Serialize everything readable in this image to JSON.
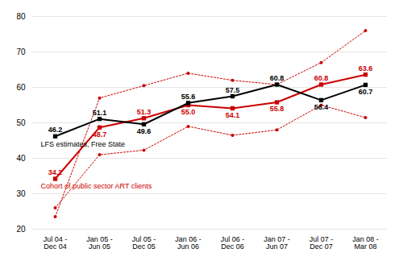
{
  "chart_data": {
    "type": "line",
    "categories": [
      "Jul 04 - Dec 04",
      "Jan 05 - Jun 05",
      "Jul 05 - Dec 05",
      "Jan 06 - Jun 06",
      "Jul 06 - Dec 06",
      "Jan 07 - Jun 07",
      "Jul 07 - Dec 07",
      "Jan 08 - Mar 08"
    ],
    "series": [
      {
        "color": "#cc0000",
        "values": [
          23.5,
          57.0,
          60.5,
          64.0,
          62.0,
          60.8,
          67.0,
          76.0
        ],
        "marker": "circle",
        "line_style": "dotted"
      },
      {
        "color": "#cc0000",
        "values": [
          26.0,
          41.0,
          42.3,
          49.0,
          46.5,
          48.0,
          55.0,
          51.5
        ],
        "marker": "circle",
        "line_style": "dotted"
      },
      {
        "name": "Cohort of public sector ART clients",
        "color": "#cc0000",
        "values": [
          34.2,
          48.7,
          51.3,
          55.0,
          54.1,
          55.8,
          60.8,
          63.6
        ],
        "value_labels": [
          "34.2",
          "48.7",
          "51.3",
          "55.0",
          "54.1",
          "55.8",
          "60.8",
          "63.6"
        ],
        "marker": "square",
        "line_style": "solid",
        "data_labels": true
      },
      {
        "name": "LFS estimates, Free State",
        "color": "#000000",
        "values": [
          46.2,
          51.1,
          49.6,
          55.6,
          57.5,
          60.8,
          56.4,
          60.7
        ],
        "marker": "square",
        "line_style": "solid",
        "data_labels": true
      }
    ],
    "ylim": [
      20,
      80
    ],
    "yticks": [
      20,
      30,
      40,
      50,
      60,
      70,
      80
    ],
    "grid": true
  }
}
